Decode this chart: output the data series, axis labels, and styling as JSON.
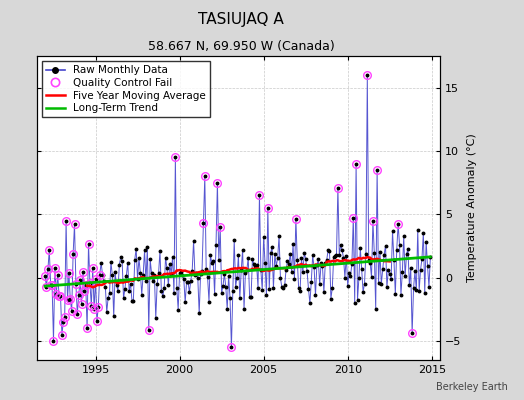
{
  "title": "TASIUJAQ A",
  "subtitle": "58.667 N, 69.950 W (Canada)",
  "ylabel": "Temperature Anomaly (°C)",
  "watermark": "Berkeley Earth",
  "xlim": [
    1991.5,
    2015.5
  ],
  "ylim": [
    -6.5,
    17.5
  ],
  "yticks": [
    -5,
    0,
    5,
    10,
    15
  ],
  "xticks": [
    1995,
    2000,
    2005,
    2010,
    2015
  ],
  "bg_color": "#d8d8d8",
  "plot_bg_color": "#ffffff",
  "line_color": "#4444cc",
  "dot_color": "#000000",
  "qc_color": "#ff44ff",
  "ma_color": "#ff0000",
  "trend_color": "#00bb00",
  "title_fontsize": 11,
  "subtitle_fontsize": 9,
  "label_fontsize": 8,
  "tick_fontsize": 8,
  "legend_fontsize": 7.5,
  "watermark_fontsize": 7
}
